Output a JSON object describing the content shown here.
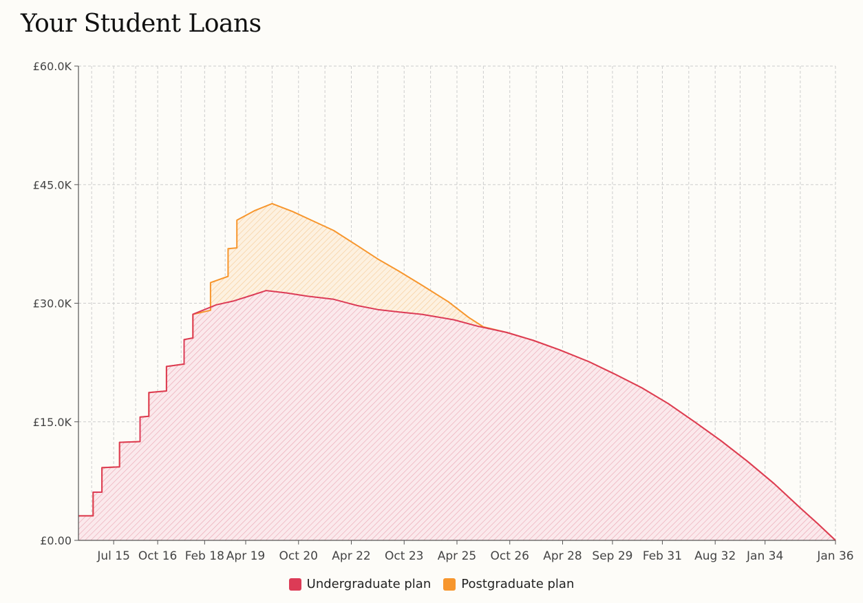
{
  "page": {
    "title": "Your Student Loans"
  },
  "colors": {
    "undergrad": "#dc3b56",
    "postgrad": "#f7962d",
    "grid": "#cccccc",
    "axis": "#555555"
  },
  "chart_data": {
    "type": "area",
    "title": "Your Student Loans",
    "xlabel": "",
    "ylabel": "",
    "ylim": [
      0,
      60000
    ],
    "y_ticks": [
      0,
      15000,
      30000,
      45000,
      60000
    ],
    "y_tick_labels": [
      "£0.00",
      "£15.0K",
      "£30.0K",
      "£45.0K",
      "£60.0K"
    ],
    "x_tick_labels": [
      "Jul 15",
      "Oct 16",
      "Feb 18",
      "Apr 19",
      "Oct 20",
      "Apr 22",
      "Oct 23",
      "Apr 25",
      "Oct 26",
      "Apr 28",
      "Sep 29",
      "Feb 31",
      "Aug 32",
      "Jan 34",
      "Jan 36"
    ],
    "x_ticks": [
      "2015-07",
      "2016-10",
      "2018-02",
      "2019-04",
      "2020-10",
      "2022-04",
      "2023-10",
      "2025-04",
      "2026-10",
      "2028-04",
      "2029-09",
      "2031-02",
      "2032-08",
      "2034-01",
      "2036-01"
    ],
    "xlim": [
      "2014-07",
      "2036-01"
    ],
    "grid": true,
    "legend_position": "bottom-center",
    "series": [
      {
        "name": "Undergraduate plan",
        "color": "#dc3b56",
        "points": [
          [
            "2014-07",
            3100
          ],
          [
            "2014-12",
            3100
          ],
          [
            "2014-12",
            6100
          ],
          [
            "2015-03",
            6100
          ],
          [
            "2015-03",
            9200
          ],
          [
            "2015-09",
            9300
          ],
          [
            "2015-09",
            12400
          ],
          [
            "2016-04",
            12500
          ],
          [
            "2016-04",
            15600
          ],
          [
            "2016-07",
            15700
          ],
          [
            "2016-07",
            18700
          ],
          [
            "2017-01",
            18900
          ],
          [
            "2017-01",
            22000
          ],
          [
            "2017-07",
            22300
          ],
          [
            "2017-07",
            25400
          ],
          [
            "2017-10",
            25600
          ],
          [
            "2017-10",
            28600
          ],
          [
            "2018-06",
            29800
          ],
          [
            "2018-12",
            30300
          ],
          [
            "2019-06",
            31000
          ],
          [
            "2019-11",
            31600
          ],
          [
            "2020-06",
            31300
          ],
          [
            "2021-01",
            30900
          ],
          [
            "2021-10",
            30500
          ],
          [
            "2022-06",
            29700
          ],
          [
            "2023-01",
            29200
          ],
          [
            "2023-08",
            28900
          ],
          [
            "2024-04",
            28600
          ],
          [
            "2025-03",
            27900
          ],
          [
            "2025-11",
            27100
          ],
          [
            "2026-09",
            26300
          ],
          [
            "2027-06",
            25300
          ],
          [
            "2028-03",
            24100
          ],
          [
            "2029-01",
            22600
          ],
          [
            "2029-10",
            21000
          ],
          [
            "2030-07",
            19300
          ],
          [
            "2031-04",
            17300
          ],
          [
            "2032-01",
            15000
          ],
          [
            "2032-10",
            12600
          ],
          [
            "2033-07",
            10000
          ],
          [
            "2034-04",
            7200
          ],
          [
            "2035-01",
            4100
          ],
          [
            "2035-07",
            2100
          ],
          [
            "2036-01",
            0
          ]
        ]
      },
      {
        "name": "Postgraduate plan",
        "color": "#f7962d",
        "points": [
          [
            "2014-07",
            3100
          ],
          [
            "2014-12",
            3100
          ],
          [
            "2014-12",
            6100
          ],
          [
            "2015-03",
            6100
          ],
          [
            "2015-03",
            9200
          ],
          [
            "2015-09",
            9300
          ],
          [
            "2015-09",
            12400
          ],
          [
            "2016-04",
            12500
          ],
          [
            "2016-04",
            15600
          ],
          [
            "2016-07",
            15700
          ],
          [
            "2016-07",
            18700
          ],
          [
            "2017-01",
            18900
          ],
          [
            "2017-01",
            22000
          ],
          [
            "2017-07",
            22300
          ],
          [
            "2017-07",
            25400
          ],
          [
            "2017-10",
            25600
          ],
          [
            "2017-10",
            28600
          ],
          [
            "2018-04",
            29100
          ],
          [
            "2018-04",
            32600
          ],
          [
            "2018-10",
            33400
          ],
          [
            "2018-10",
            36900
          ],
          [
            "2019-01",
            37000
          ],
          [
            "2019-01",
            40500
          ],
          [
            "2019-07",
            41700
          ],
          [
            "2020-01",
            42600
          ],
          [
            "2020-08",
            41600
          ],
          [
            "2021-03",
            40400
          ],
          [
            "2021-10",
            39200
          ],
          [
            "2022-06",
            37300
          ],
          [
            "2023-01",
            35600
          ],
          [
            "2023-08",
            34100
          ],
          [
            "2024-04",
            32300
          ],
          [
            "2025-01",
            30200
          ],
          [
            "2025-08",
            28200
          ],
          [
            "2026-01",
            27000
          ],
          [
            "2026-09",
            26300
          ],
          [
            "2027-06",
            25300
          ],
          [
            "2028-03",
            24100
          ],
          [
            "2029-01",
            22600
          ],
          [
            "2029-10",
            21000
          ],
          [
            "2030-07",
            19300
          ],
          [
            "2031-04",
            17300
          ],
          [
            "2032-01",
            15000
          ],
          [
            "2032-10",
            12600
          ],
          [
            "2033-07",
            10000
          ],
          [
            "2034-04",
            7200
          ],
          [
            "2035-01",
            4100
          ],
          [
            "2035-07",
            2100
          ],
          [
            "2036-01",
            0
          ]
        ]
      }
    ]
  }
}
